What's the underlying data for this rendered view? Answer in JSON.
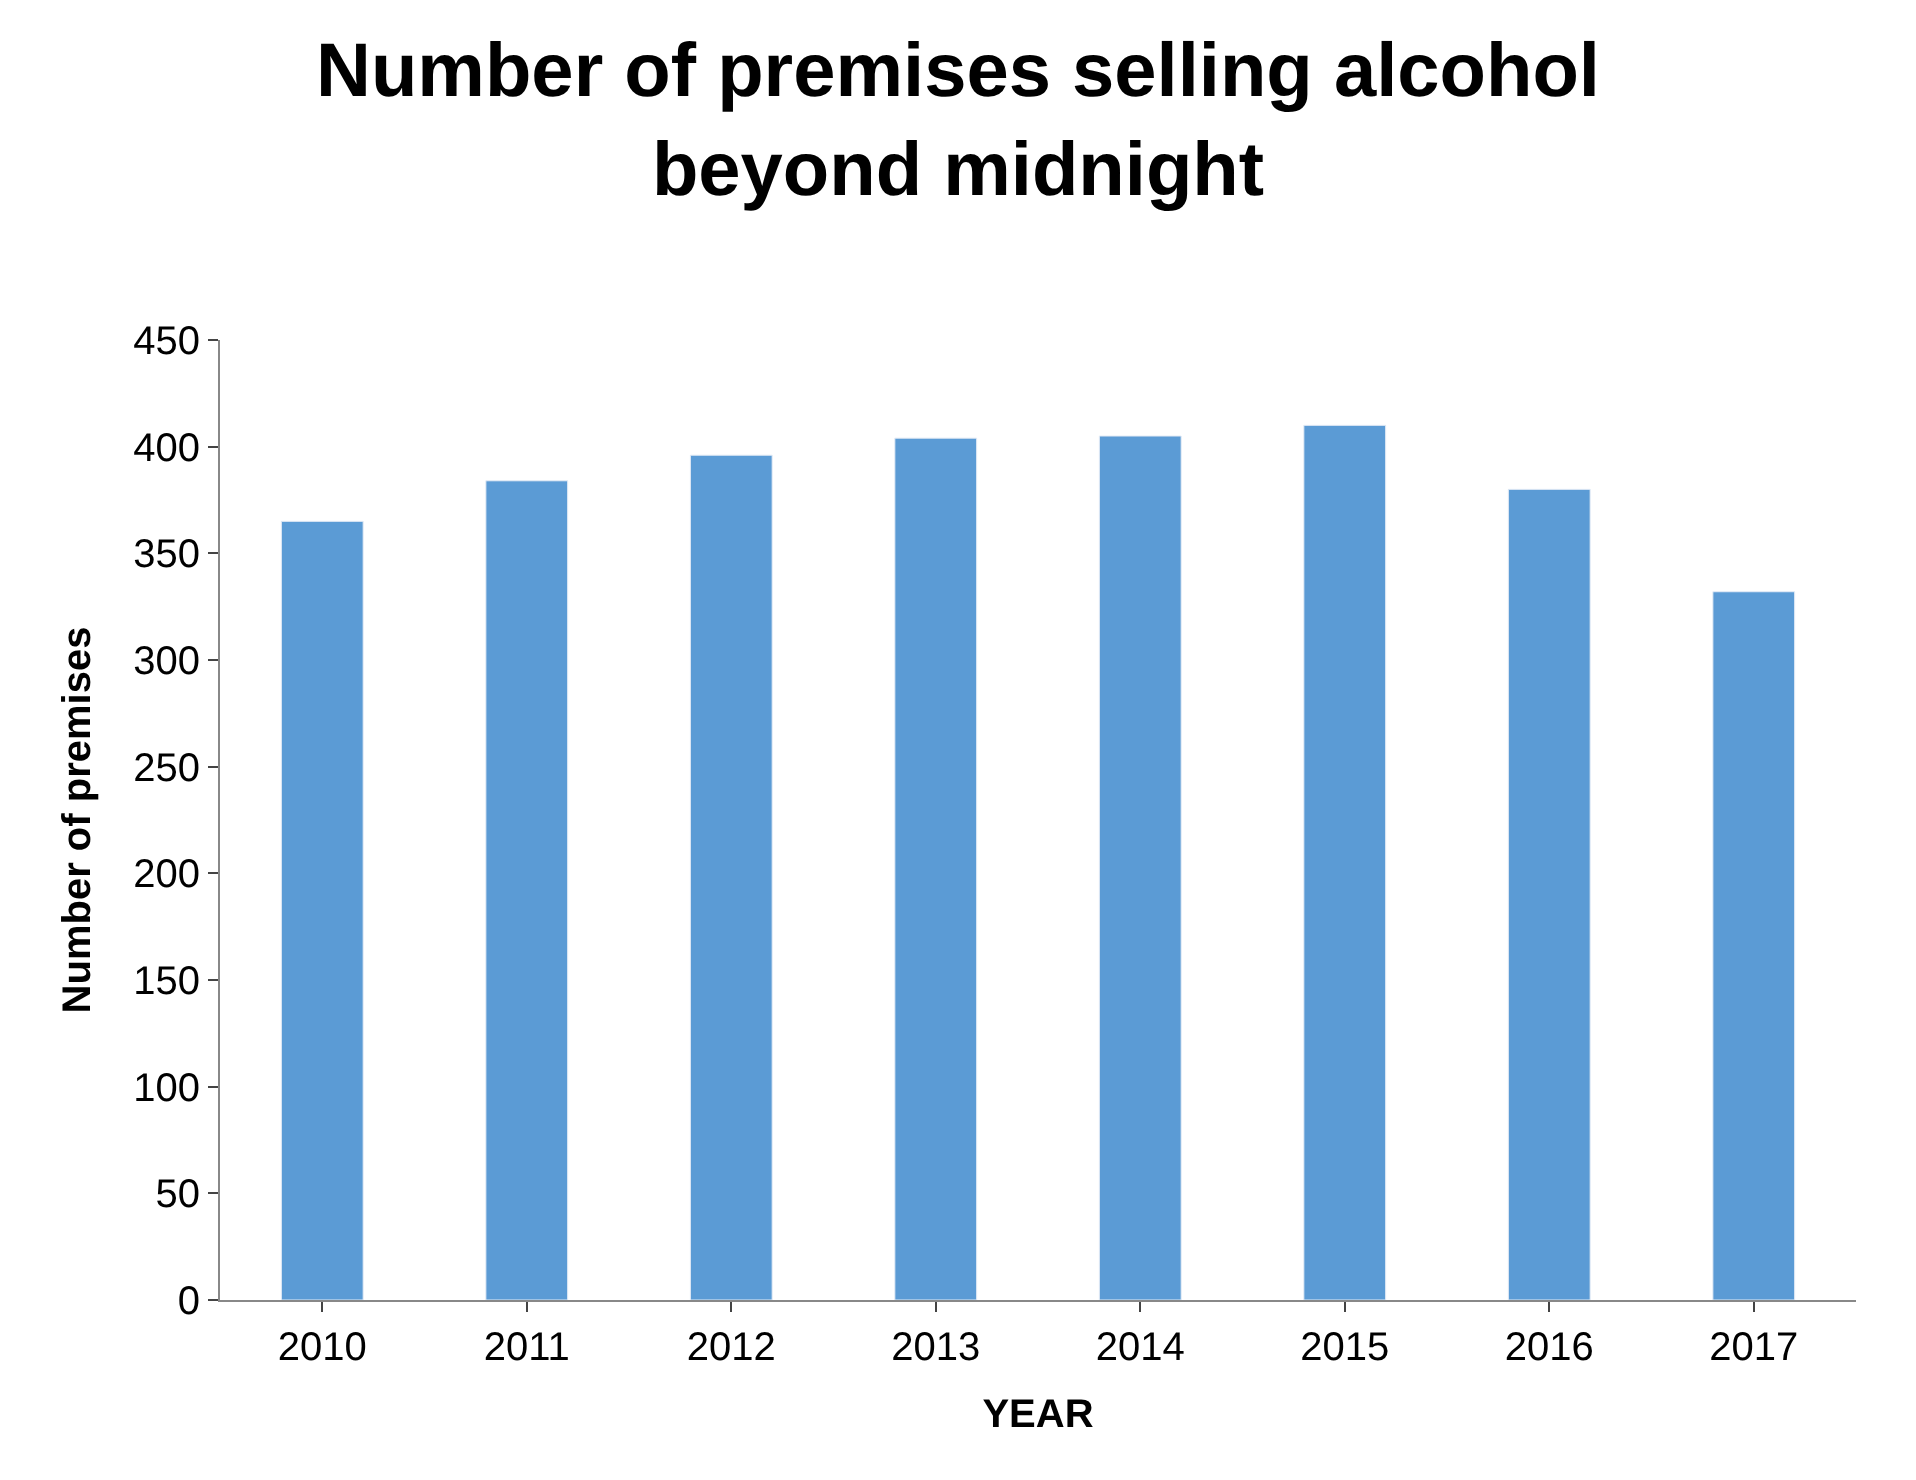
{
  "chart_data": {
    "type": "bar",
    "title": "Number of premises selling alcohol beyond midnight",
    "xlabel": "YEAR",
    "ylabel": "Number of premises",
    "categories": [
      "2010",
      "2011",
      "2012",
      "2013",
      "2014",
      "2015",
      "2016",
      "2017"
    ],
    "values": [
      365,
      384,
      396,
      404,
      405,
      410,
      380,
      332
    ],
    "color": "#5b9bd5",
    "ylim": [
      0,
      450
    ],
    "yticks": [
      0,
      50,
      100,
      150,
      200,
      250,
      300,
      350,
      400,
      450
    ]
  }
}
